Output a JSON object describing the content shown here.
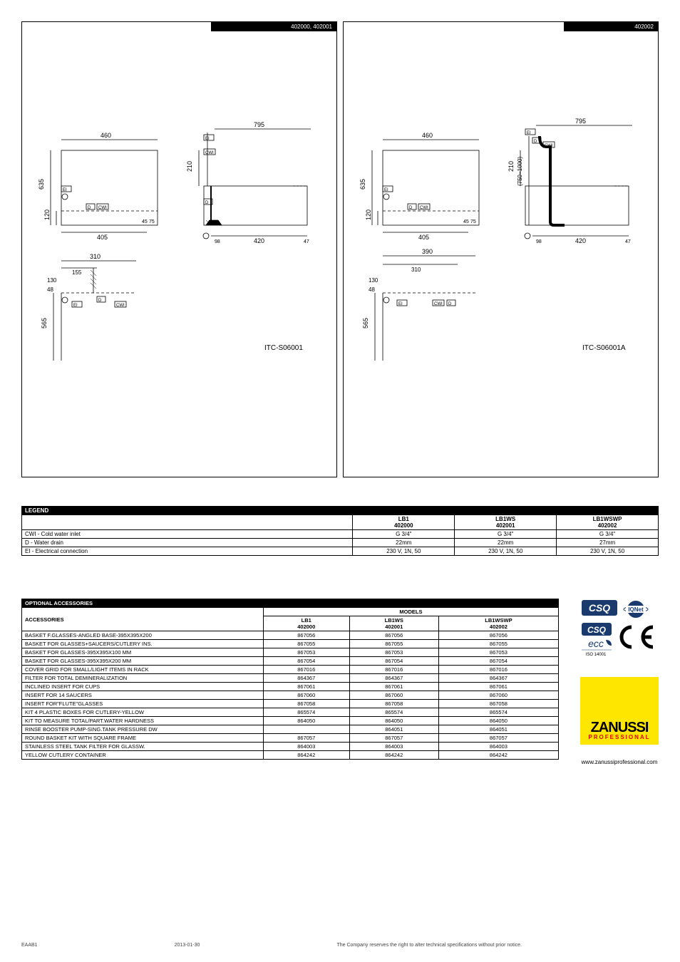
{
  "diagrams": {
    "left_header": "402000, 402001",
    "right_header": "402002",
    "left_code": "ITC-S06001",
    "right_code": "ITC-S06001A",
    "dims": {
      "w_top": "460",
      "w_side": "795",
      "h_635": "635",
      "h_210": "210",
      "h_120": "120",
      "w_405": "405",
      "o_45": "45",
      "o_75": "75",
      "o_98": "98",
      "w_420": "420",
      "o_47": "47",
      "w_310": "310",
      "w_155": "155",
      "h_130": "130",
      "h_48": "48",
      "h_565": "565",
      "w_390": "390",
      "h_750_1000": "(750−1000)"
    },
    "labels": {
      "EI": "EI",
      "CWI": "CWI",
      "D": "D"
    }
  },
  "legend": {
    "title": "LEGEND",
    "cols": [
      {
        "name": "LB1",
        "code": "402000"
      },
      {
        "name": "LB1WS",
        "code": "402001"
      },
      {
        "name": "LB1WSWP",
        "code": "402002"
      }
    ],
    "rows": [
      {
        "label": "CWI - Cold water inlet",
        "v": [
          "G 3/4\"",
          "G 3/4\"",
          "G 3/4\""
        ]
      },
      {
        "label": "D - Water drain",
        "v": [
          "22mm",
          "22mm",
          "27mm"
        ]
      },
      {
        "label": "EI - Electrical connection",
        "v": [
          "230 V, 1N, 50",
          "230 V, 1N, 50",
          "230 V, 1N, 50"
        ]
      }
    ]
  },
  "accessories": {
    "opt_title": "OPTIONAL ACCESSORIES",
    "acc_title": "ACCESSORIES",
    "models_title": "MODELS",
    "cols": [
      {
        "name": "LB1",
        "code": "402000"
      },
      {
        "name": "LB1WS",
        "code": "402001"
      },
      {
        "name": "LB1WSWP",
        "code": "402002"
      }
    ],
    "rows": [
      {
        "label": "BASKET F.GLASSES-ANGLED BASE-395X395X200",
        "v": [
          "867056",
          "867056",
          "867056"
        ]
      },
      {
        "label": "BASKET FOR GLASSES+SAUCERS/CUTLERY INS.",
        "v": [
          "867055",
          "867055",
          "867055"
        ]
      },
      {
        "label": "BASKET FOR GLASSES-395X395X100 MM",
        "v": [
          "867053",
          "867053",
          "867053"
        ]
      },
      {
        "label": "BASKET FOR GLASSES-395X395X200 MM",
        "v": [
          "867054",
          "867054",
          "867054"
        ]
      },
      {
        "label": "COVER GRID FOR SMALL/LIGHT ITEMS IN RACK",
        "v": [
          "867016",
          "867016",
          "867016"
        ]
      },
      {
        "label": "FILTER FOR TOTAL DEMINERALIZATION",
        "v": [
          "864367",
          "864367",
          "864367"
        ]
      },
      {
        "label": "INCLINED INSERT FOR CUPS",
        "v": [
          "867061",
          "867061",
          "867061"
        ]
      },
      {
        "label": "INSERT FOR 14 SAUCERS",
        "v": [
          "867060",
          "867060",
          "867060"
        ]
      },
      {
        "label": "INSERT FOR\"FLUTE\"GLASSES",
        "v": [
          "867058",
          "867058",
          "867058"
        ]
      },
      {
        "label": "KIT 4 PLASTIC BOXES FOR CUTLERY-YELLOW",
        "v": [
          "865574",
          "865574",
          "865574"
        ]
      },
      {
        "label": "KIT TO MEASURE TOTAL/PART.WATER HARDNESS",
        "v": [
          "864050",
          "864050",
          "864050"
        ]
      },
      {
        "label": "RINSE BOOSTER PUMP-SING.TANK PRESSURE DW",
        "v": [
          "",
          "864051",
          "864051"
        ]
      },
      {
        "label": "ROUND BASKET KIT WITH SQUARE FRAME",
        "v": [
          "867057",
          "867057",
          "867057"
        ]
      },
      {
        "label": "STAINLESS STEEL TANK FILTER FOR GLASSW.",
        "v": [
          "864003",
          "864003",
          "864003"
        ]
      },
      {
        "label": "YELLOW CUTLERY CONTAINER",
        "v": [
          "864242",
          "864242",
          "864242"
        ]
      }
    ]
  },
  "cert": {
    "csq1": "CSQ",
    "iqnet": "IQNet",
    "csq2": "CSQ",
    "eco": "ecc",
    "iso": "ISO 14001",
    "ce": "CE"
  },
  "brand": {
    "name": "ZANUSSI",
    "sub": "PROFESSIONAL"
  },
  "footer": {
    "left": "EAAB1",
    "date": "2013-01-30",
    "disclaimer": "The Company reserves the right to alter technical specifications without prior notice.",
    "web": "www.zanussiprofessional.com"
  }
}
